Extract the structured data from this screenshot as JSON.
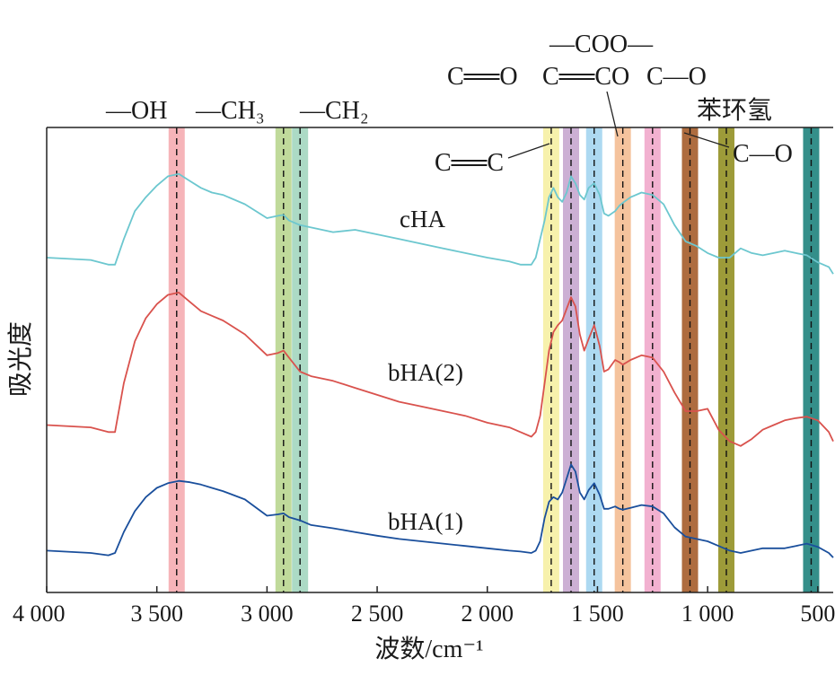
{
  "chart_data": {
    "type": "line",
    "xlabel": "波数/cm⁻¹",
    "ylabel": "吸光度",
    "xlim": [
      4000,
      430
    ],
    "x_reversed": true,
    "ylim": [
      0,
      1.0
    ],
    "grid": false,
    "x_ticks": [
      4000,
      3500,
      3000,
      2500,
      2000,
      1500,
      1000,
      500
    ],
    "x_tick_labels": [
      "4 000",
      "3 500",
      "3 000",
      "2 500",
      "2 000",
      "1 500",
      "1 000",
      "500"
    ],
    "bands": [
      {
        "center": 3410,
        "color": "#f4a7ad"
      },
      {
        "center": 2925,
        "color": "#b5d38a"
      },
      {
        "center": 2850,
        "color": "#9dd3bb"
      },
      {
        "center": 1710,
        "color": "#f6ef9e"
      },
      {
        "center": 1620,
        "color": "#c3a2cc"
      },
      {
        "center": 1515,
        "color": "#9fd2ef"
      },
      {
        "center": 1385,
        "color": "#f3b98c"
      },
      {
        "center": 1250,
        "color": "#f0a3c8"
      },
      {
        "center": 1080,
        "color": "#a0521d"
      },
      {
        "center": 915,
        "color": "#8c8a16"
      },
      {
        "center": 530,
        "color": "#117b76"
      }
    ],
    "annotations": {
      "oh": "—OH",
      "ch3": "—CH₃",
      "ch2": "—CH₂",
      "cc": "C══C",
      "coo": "—COO—",
      "co1": "C══O",
      "co2": "C══CO",
      "co3": "C—O",
      "benzene": "苯环氢",
      "co4": "C—O"
    },
    "series": [
      {
        "name": "cHA",
        "color": "#6cc7cf",
        "x": [
          4000,
          3800,
          3720,
          3690,
          3650,
          3600,
          3550,
          3500,
          3450,
          3400,
          3350,
          3300,
          3250,
          3200,
          3100,
          3000,
          2950,
          2925,
          2900,
          2850,
          2800,
          2700,
          2600,
          2500,
          2400,
          2300,
          2200,
          2100,
          2000,
          1900,
          1850,
          1800,
          1780,
          1760,
          1740,
          1720,
          1700,
          1680,
          1660,
          1640,
          1620,
          1600,
          1580,
          1560,
          1540,
          1515,
          1490,
          1470,
          1450,
          1420,
          1400,
          1385,
          1350,
          1300,
          1250,
          1200,
          1150,
          1100,
          1050,
          1000,
          950,
          900,
          850,
          800,
          750,
          700,
          650,
          600,
          550,
          500,
          450,
          430
        ],
        "values": [
          0.72,
          0.715,
          0.705,
          0.705,
          0.76,
          0.82,
          0.85,
          0.875,
          0.895,
          0.9,
          0.885,
          0.87,
          0.86,
          0.855,
          0.835,
          0.805,
          0.81,
          0.812,
          0.8,
          0.79,
          0.785,
          0.775,
          0.78,
          0.77,
          0.76,
          0.75,
          0.74,
          0.73,
          0.72,
          0.712,
          0.705,
          0.705,
          0.72,
          0.76,
          0.8,
          0.85,
          0.87,
          0.85,
          0.84,
          0.86,
          0.895,
          0.88,
          0.855,
          0.845,
          0.87,
          0.88,
          0.855,
          0.815,
          0.81,
          0.82,
          0.832,
          0.838,
          0.85,
          0.86,
          0.855,
          0.835,
          0.79,
          0.755,
          0.745,
          0.73,
          0.72,
          0.72,
          0.74,
          0.73,
          0.725,
          0.73,
          0.735,
          0.73,
          0.725,
          0.71,
          0.7,
          0.685
        ]
      },
      {
        "name": "bHA(2)",
        "color": "#d9524d",
        "x": [
          4000,
          3800,
          3720,
          3690,
          3650,
          3600,
          3550,
          3500,
          3450,
          3400,
          3350,
          3300,
          3250,
          3200,
          3100,
          3000,
          2950,
          2925,
          2900,
          2850,
          2800,
          2700,
          2600,
          2500,
          2400,
          2300,
          2200,
          2100,
          2000,
          1900,
          1850,
          1800,
          1780,
          1760,
          1740,
          1720,
          1700,
          1680,
          1660,
          1640,
          1620,
          1600,
          1580,
          1560,
          1540,
          1515,
          1490,
          1470,
          1450,
          1420,
          1400,
          1385,
          1350,
          1300,
          1250,
          1200,
          1150,
          1100,
          1050,
          1000,
          950,
          900,
          850,
          800,
          750,
          700,
          650,
          600,
          550,
          500,
          450,
          430
        ],
        "values": [
          0.36,
          0.355,
          0.345,
          0.345,
          0.45,
          0.54,
          0.59,
          0.62,
          0.64,
          0.645,
          0.625,
          0.605,
          0.595,
          0.585,
          0.555,
          0.51,
          0.515,
          0.52,
          0.505,
          0.475,
          0.465,
          0.455,
          0.44,
          0.425,
          0.41,
          0.4,
          0.39,
          0.38,
          0.365,
          0.355,
          0.345,
          0.335,
          0.345,
          0.38,
          0.45,
          0.52,
          0.56,
          0.575,
          0.585,
          0.61,
          0.635,
          0.615,
          0.555,
          0.52,
          0.545,
          0.575,
          0.53,
          0.475,
          0.48,
          0.5,
          0.495,
          0.49,
          0.5,
          0.51,
          0.505,
          0.475,
          0.43,
          0.39,
          0.39,
          0.395,
          0.35,
          0.325,
          0.315,
          0.33,
          0.35,
          0.36,
          0.37,
          0.375,
          0.378,
          0.37,
          0.345,
          0.325
        ]
      },
      {
        "name": "bHA(1)",
        "color": "#1a4f9c",
        "x": [
          4000,
          3800,
          3720,
          3690,
          3650,
          3600,
          3550,
          3500,
          3450,
          3400,
          3350,
          3300,
          3250,
          3200,
          3100,
          3000,
          2950,
          2925,
          2900,
          2850,
          2800,
          2700,
          2600,
          2500,
          2400,
          2300,
          2200,
          2100,
          2000,
          1900,
          1850,
          1800,
          1780,
          1760,
          1740,
          1720,
          1700,
          1680,
          1660,
          1640,
          1620,
          1600,
          1580,
          1560,
          1540,
          1515,
          1490,
          1470,
          1450,
          1420,
          1400,
          1385,
          1350,
          1300,
          1250,
          1200,
          1150,
          1100,
          1050,
          1000,
          950,
          900,
          850,
          800,
          750,
          700,
          650,
          600,
          550,
          500,
          450,
          430
        ],
        "values": [
          0.09,
          0.085,
          0.08,
          0.085,
          0.13,
          0.175,
          0.205,
          0.225,
          0.235,
          0.24,
          0.237,
          0.232,
          0.225,
          0.218,
          0.2,
          0.165,
          0.168,
          0.17,
          0.162,
          0.155,
          0.145,
          0.138,
          0.13,
          0.122,
          0.115,
          0.11,
          0.105,
          0.1,
          0.095,
          0.09,
          0.088,
          0.085,
          0.09,
          0.11,
          0.16,
          0.195,
          0.205,
          0.2,
          0.215,
          0.245,
          0.275,
          0.26,
          0.215,
          0.2,
          0.22,
          0.235,
          0.21,
          0.18,
          0.18,
          0.185,
          0.18,
          0.178,
          0.182,
          0.188,
          0.185,
          0.17,
          0.14,
          0.12,
          0.115,
          0.11,
          0.1,
          0.09,
          0.085,
          0.09,
          0.095,
          0.095,
          0.095,
          0.1,
          0.105,
          0.098,
          0.085,
          0.075
        ]
      }
    ]
  }
}
